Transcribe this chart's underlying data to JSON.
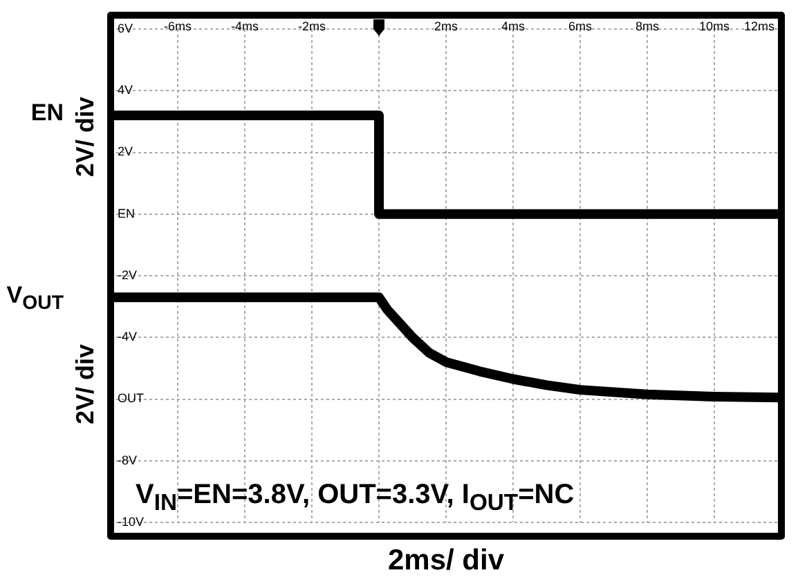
{
  "chart_data": {
    "type": "line",
    "xlabel": "2ms/ div",
    "ylabel": "2V/ div",
    "annotations": [
      "2V/ div",
      "V$_{IN}$=EN=3.8V, OUT=3.3V, I$_{OUT}$=NC"
    ],
    "series": [
      {
        "name": "EN",
        "color": "#000000",
        "x": [
          -8,
          0,
          0,
          12
        ],
        "values": [
          3.2,
          3.2,
          0,
          0
        ]
      },
      {
        "name": "V$_{OUT}$",
        "color": "#000000",
        "x": [
          -8,
          0,
          0.25,
          0.5,
          1,
          1.5,
          2,
          3,
          4,
          5,
          6,
          8,
          10,
          12
        ],
        "values": [
          -2.7,
          -2.7,
          -3.1,
          -3.4,
          -4.0,
          -4.5,
          -4.8,
          -5.1,
          -5.35,
          -5.55,
          -5.7,
          -5.85,
          -5.92,
          -5.95
        ]
      }
    ],
    "xlim": [
      -8,
      12
    ],
    "xticks": [
      {
        "value": -8,
        "label": null
      },
      {
        "value": -6,
        "label": "-6ms"
      },
      {
        "value": -4,
        "label": "-4ms"
      },
      {
        "value": -2,
        "label": "-2ms"
      },
      {
        "value": 0,
        "label": null
      },
      {
        "value": 2,
        "label": "2ms"
      },
      {
        "value": 4,
        "label": "4ms"
      },
      {
        "value": 6,
        "label": "6ms"
      },
      {
        "value": 8,
        "label": "8ms"
      },
      {
        "value": 10,
        "label": "10ms"
      },
      {
        "value": 12,
        "label": "12ms"
      }
    ],
    "ylim": [
      -10,
      6
    ],
    "yticks": [
      {
        "value": 6,
        "label": "6V"
      },
      {
        "value": 4,
        "label": "4V"
      },
      {
        "value": 2,
        "label": "2V"
      },
      {
        "value": 0,
        "label": "EN"
      },
      {
        "value": -2,
        "label": "-2V"
      },
      {
        "value": -4,
        "label": "-4V"
      },
      {
        "value": -6,
        "label": "OUT"
      },
      {
        "value": -8,
        "label": "-8V"
      },
      {
        "value": -10,
        "label": "-10V"
      }
    ],
    "grid": true,
    "legend": false,
    "marker": "none",
    "line_style": "solid"
  }
}
